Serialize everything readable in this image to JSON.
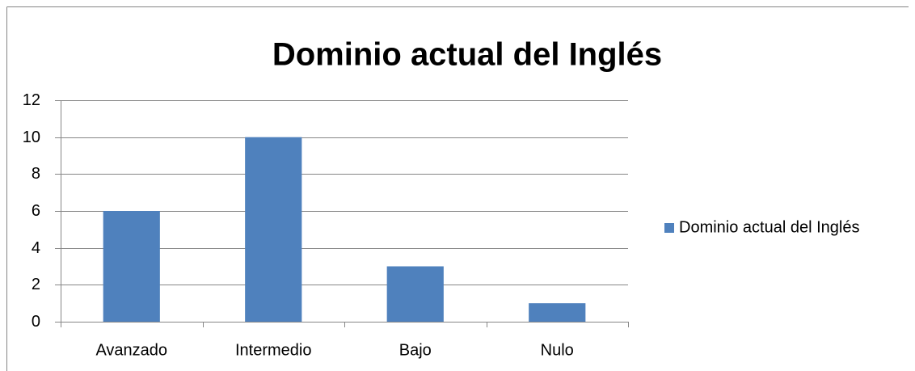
{
  "chart_data": {
    "type": "bar",
    "title": "Dominio actual del Inglés",
    "categories": [
      "Avanzado",
      "Intermedio",
      "Bajo",
      "Nulo"
    ],
    "series": [
      {
        "name": "Dominio actual del Inglés",
        "color": "#4f81bd",
        "values": [
          6,
          10,
          3,
          1
        ]
      }
    ],
    "ylim": [
      0,
      12
    ],
    "yticks": [
      0,
      2,
      4,
      6,
      8,
      10,
      12
    ],
    "grid": true,
    "legend": "right"
  }
}
